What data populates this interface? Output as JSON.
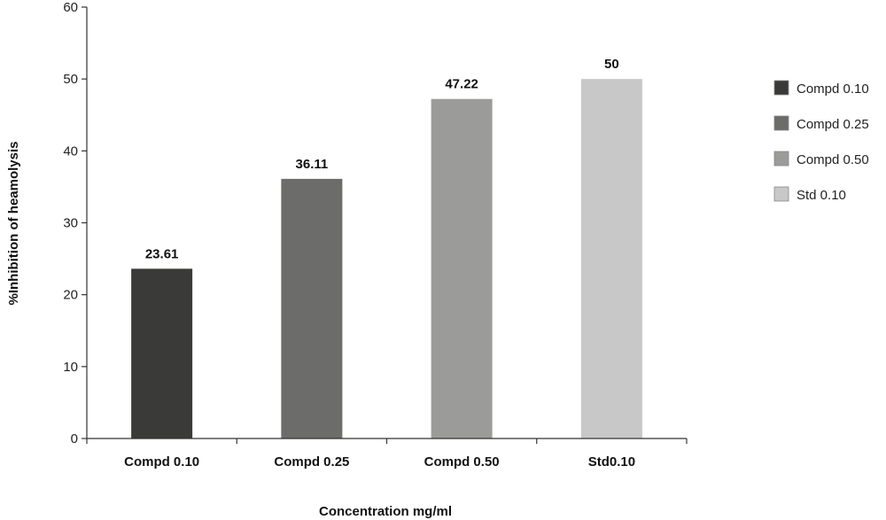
{
  "chart_data": {
    "type": "bar",
    "categories": [
      "Compd 0.10",
      "Compd 0.25",
      "Compd 0.50",
      "Std0.10"
    ],
    "values": [
      23.61,
      36.11,
      47.22,
      50
    ],
    "data_labels": [
      "23.61",
      "36.11",
      "47.22",
      "50"
    ],
    "colors": [
      "#3a3a39",
      "#6c6c6b",
      "#9b9b9a",
      "#c8c8c8"
    ],
    "title": "",
    "xlabel": "Concentration mg/ml",
    "ylabel": "%Inhibition of heamolysis",
    "ylim": [
      0,
      60
    ],
    "yticks": [
      0,
      10,
      20,
      30,
      40,
      50,
      60
    ],
    "grid": false,
    "legend": {
      "position": "right",
      "entries": [
        "Compd 0.10",
        "Compd 0.25",
        "Compd 0.50",
        "Std 0.10"
      ]
    }
  }
}
